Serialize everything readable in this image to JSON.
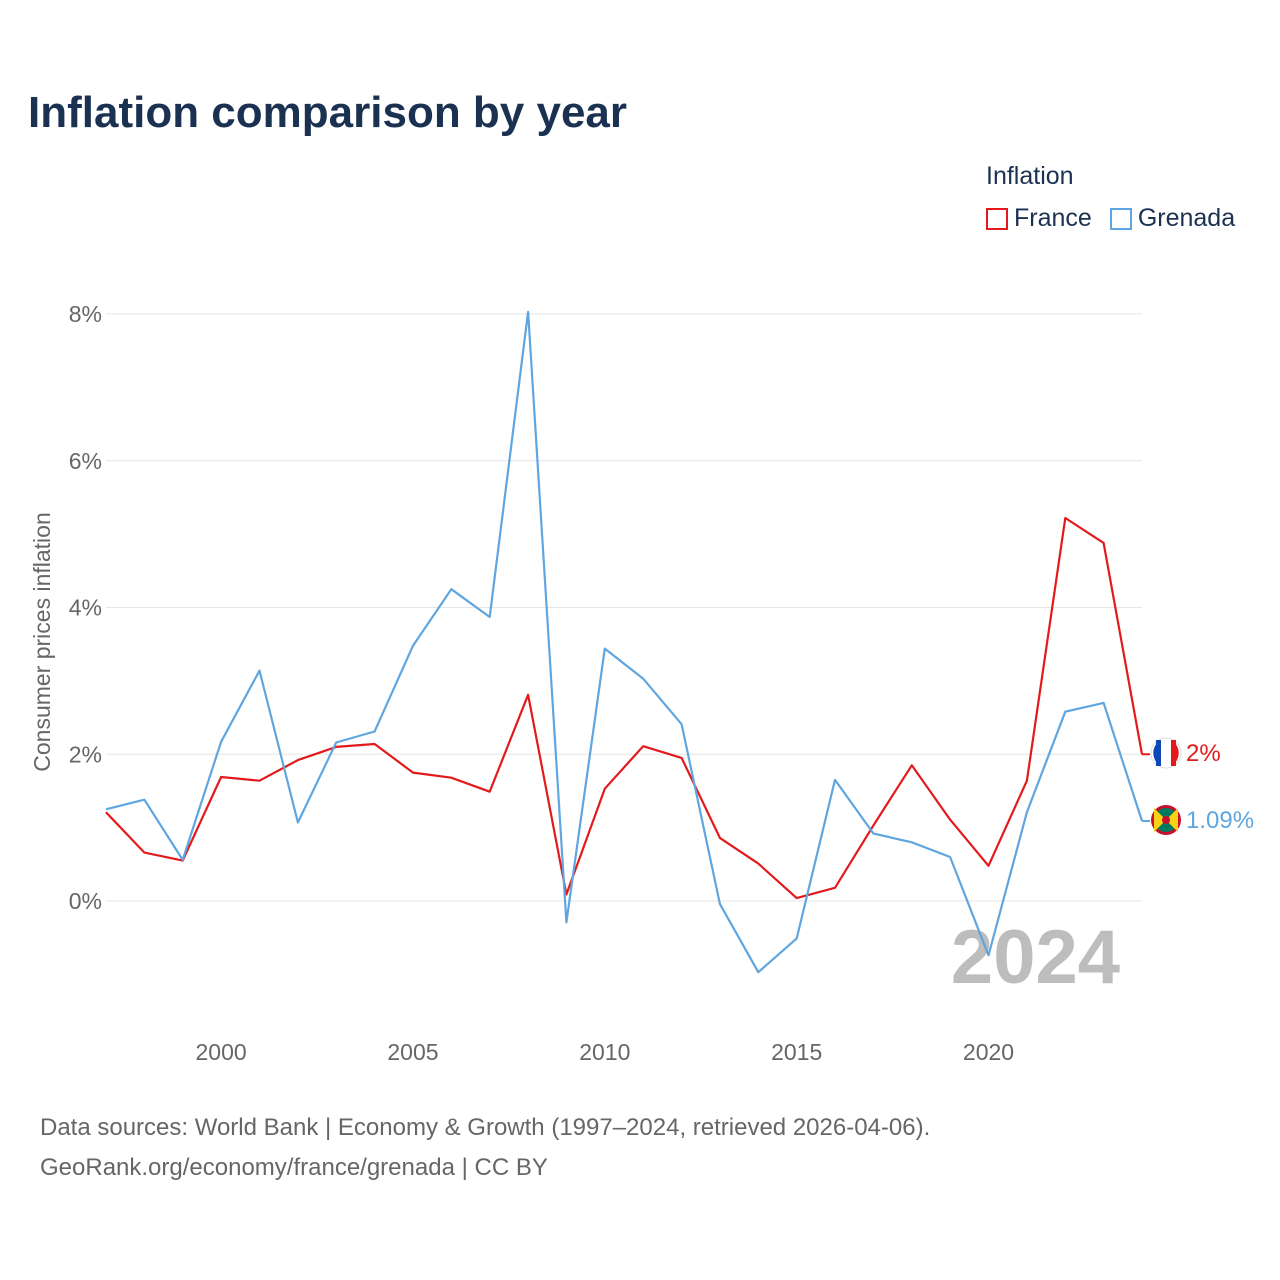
{
  "title": "Inflation comparison by year",
  "legend": {
    "title": "Inflation",
    "items": [
      {
        "name": "France",
        "color": "#e31a1c"
      },
      {
        "name": "Grenada",
        "color": "#5fa6e0"
      }
    ]
  },
  "source": {
    "line1": "Data sources: World Bank | Economy & Growth (1997–2024, retrieved 2026-04-06).",
    "line2": "GeoRank.org/economy/france/grenada | CC BY"
  },
  "year_label": "2024",
  "chart_data": {
    "type": "line",
    "title": "Inflation comparison by year",
    "xlabel": "",
    "ylabel": "Consumer prices inflation",
    "xlim": [
      1997,
      2024
    ],
    "ylim": [
      -1.6,
      8.2
    ],
    "x_ticks": [
      2000,
      2005,
      2010,
      2015,
      2020
    ],
    "x_tick_labels": [
      "2000",
      "2005",
      "2010",
      "2015",
      "2020"
    ],
    "y_ticks": [
      0,
      2,
      4,
      6,
      8
    ],
    "y_tick_labels": [
      "0%",
      "2%",
      "4%",
      "6%",
      "8%"
    ],
    "grid": true,
    "x": [
      1997,
      1998,
      1999,
      2000,
      2001,
      2002,
      2003,
      2004,
      2005,
      2006,
      2007,
      2008,
      2009,
      2010,
      2011,
      2012,
      2013,
      2014,
      2015,
      2016,
      2017,
      2018,
      2019,
      2020,
      2021,
      2022,
      2023,
      2024
    ],
    "series": [
      {
        "name": "France",
        "color": "#e31a1c",
        "end_label": "2%",
        "values": [
          1.21,
          0.66,
          0.55,
          1.69,
          1.64,
          1.92,
          2.1,
          2.14,
          1.75,
          1.68,
          1.49,
          2.81,
          0.09,
          1.53,
          2.11,
          1.95,
          0.86,
          0.51,
          0.04,
          0.18,
          1.03,
          1.85,
          1.11,
          0.48,
          1.64,
          5.22,
          4.88,
          2.0
        ]
      },
      {
        "name": "Grenada",
        "color": "#5fa6e0",
        "end_label": "1.09%",
        "values": [
          1.25,
          1.38,
          0.56,
          2.17,
          3.14,
          1.07,
          2.16,
          2.31,
          3.48,
          4.25,
          3.87,
          8.03,
          -0.29,
          3.44,
          3.03,
          2.41,
          -0.04,
          -0.97,
          -0.51,
          1.65,
          0.92,
          0.8,
          0.6,
          -0.74,
          1.21,
          2.58,
          2.7,
          1.09
        ]
      }
    ]
  }
}
